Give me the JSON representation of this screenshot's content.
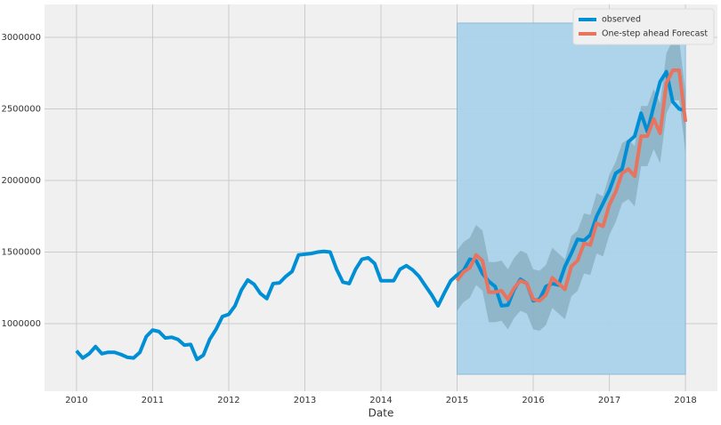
{
  "chart_data": {
    "type": "line",
    "xlabel": "Date",
    "xlim": [
      2009.58,
      2018.42
    ],
    "ylim": [
      528000,
      3230000
    ],
    "xticks": [
      2010,
      2011,
      2012,
      2013,
      2014,
      2015,
      2016,
      2017,
      2018
    ],
    "yticks": [
      1000000,
      1500000,
      2000000,
      2500000,
      3000000
    ],
    "grid": true,
    "legend": "upper right",
    "shade": {
      "x": [
        2015,
        2018
      ],
      "y": [
        646000,
        3100000
      ],
      "color": "#a9d2e9"
    },
    "band_color": "#5a7d8c",
    "series": [
      {
        "name": "observed",
        "color": "#008fd5",
        "x": [
          2010,
          2010.083,
          2010.167,
          2010.25,
          2010.333,
          2010.417,
          2010.5,
          2010.583,
          2010.667,
          2010.75,
          2010.833,
          2010.917,
          2011,
          2011.083,
          2011.167,
          2011.25,
          2011.333,
          2011.417,
          2011.5,
          2011.583,
          2011.667,
          2011.75,
          2011.833,
          2011.917,
          2012,
          2012.083,
          2012.167,
          2012.25,
          2012.333,
          2012.417,
          2012.5,
          2012.583,
          2012.667,
          2012.75,
          2012.833,
          2012.917,
          2013,
          2013.083,
          2013.167,
          2013.25,
          2013.333,
          2013.417,
          2013.5,
          2013.583,
          2013.667,
          2013.75,
          2013.833,
          2013.917,
          2014,
          2014.083,
          2014.167,
          2014.25,
          2014.333,
          2014.417,
          2014.5,
          2014.583,
          2014.667,
          2014.75,
          2014.833,
          2014.917,
          2015,
          2015.083,
          2015.167,
          2015.25,
          2015.333,
          2015.417,
          2015.5,
          2015.583,
          2015.667,
          2015.75,
          2015.833,
          2015.917,
          2016,
          2016.083,
          2016.167,
          2016.25,
          2016.333,
          2016.417,
          2016.5,
          2016.583,
          2016.667,
          2016.75,
          2016.833,
          2016.917,
          2017,
          2017.083,
          2017.167,
          2017.25,
          2017.333,
          2017.417,
          2017.5,
          2017.583,
          2017.667,
          2017.75,
          2017.833,
          2017.917,
          2018
        ],
        "values": [
          810000,
          760000,
          790000,
          840000,
          790000,
          800000,
          800000,
          785000,
          765000,
          760000,
          800000,
          910000,
          955000,
          945000,
          900000,
          905000,
          890000,
          850000,
          855000,
          750000,
          780000,
          890000,
          960000,
          1050000,
          1065000,
          1125000,
          1235000,
          1305000,
          1275000,
          1210000,
          1175000,
          1280000,
          1285000,
          1330000,
          1365000,
          1480000,
          1485000,
          1490000,
          1500000,
          1505000,
          1500000,
          1380000,
          1290000,
          1280000,
          1380000,
          1450000,
          1460000,
          1420000,
          1300000,
          1300000,
          1300000,
          1380000,
          1405000,
          1375000,
          1330000,
          1265000,
          1200000,
          1125000,
          1215000,
          1300000,
          1340000,
          1370000,
          1450000,
          1440000,
          1350000,
          1295000,
          1260000,
          1125000,
          1130000,
          1240000,
          1310000,
          1280000,
          1160000,
          1170000,
          1260000,
          1280000,
          1270000,
          1400000,
          1490000,
          1590000,
          1580000,
          1620000,
          1750000,
          1840000,
          1930000,
          2050000,
          2080000,
          2270000,
          2310000,
          2470000,
          2340000,
          2520000,
          2690000,
          2760000,
          2550000,
          2500000,
          2490000
        ]
      },
      {
        "name": "One-step ahead Forecast",
        "color": "#e8735f",
        "x": [
          2015,
          2015.083,
          2015.167,
          2015.25,
          2015.333,
          2015.417,
          2015.5,
          2015.583,
          2015.667,
          2015.75,
          2015.833,
          2015.917,
          2016,
          2016.083,
          2016.167,
          2016.25,
          2016.333,
          2016.417,
          2016.5,
          2016.583,
          2016.667,
          2016.75,
          2016.833,
          2016.917,
          2017,
          2017.083,
          2017.167,
          2017.25,
          2017.333,
          2017.417,
          2017.5,
          2017.583,
          2017.667,
          2017.75,
          2017.833,
          2017.917,
          2018
        ],
        "values": [
          1300000,
          1360000,
          1390000,
          1480000,
          1440000,
          1220000,
          1220000,
          1230000,
          1170000,
          1250000,
          1300000,
          1280000,
          1170000,
          1160000,
          1200000,
          1320000,
          1280000,
          1240000,
          1400000,
          1440000,
          1560000,
          1550000,
          1700000,
          1680000,
          1830000,
          1920000,
          2050000,
          2080000,
          2030000,
          2310000,
          2310000,
          2430000,
          2330000,
          2680000,
          2770000,
          2770000,
          2410000
        ],
        "lower": [
          1090000,
          1150000,
          1180000,
          1270000,
          1230000,
          1010000,
          1010000,
          1020000,
          960000,
          1040000,
          1090000,
          1070000,
          960000,
          950000,
          990000,
          1110000,
          1070000,
          1030000,
          1190000,
          1230000,
          1350000,
          1340000,
          1490000,
          1470000,
          1620000,
          1710000,
          1840000,
          1870000,
          1820000,
          2100000,
          2100000,
          2220000,
          2120000,
          2470000,
          2560000,
          2560000,
          2200000
        ],
        "upper": [
          1510000,
          1570000,
          1600000,
          1690000,
          1650000,
          1430000,
          1430000,
          1440000,
          1380000,
          1460000,
          1510000,
          1490000,
          1380000,
          1370000,
          1410000,
          1530000,
          1490000,
          1450000,
          1610000,
          1650000,
          1770000,
          1760000,
          1910000,
          1890000,
          2040000,
          2130000,
          2260000,
          2290000,
          2240000,
          2520000,
          2520000,
          2640000,
          2540000,
          2890000,
          2980000,
          2980000,
          2620000
        ]
      }
    ]
  }
}
